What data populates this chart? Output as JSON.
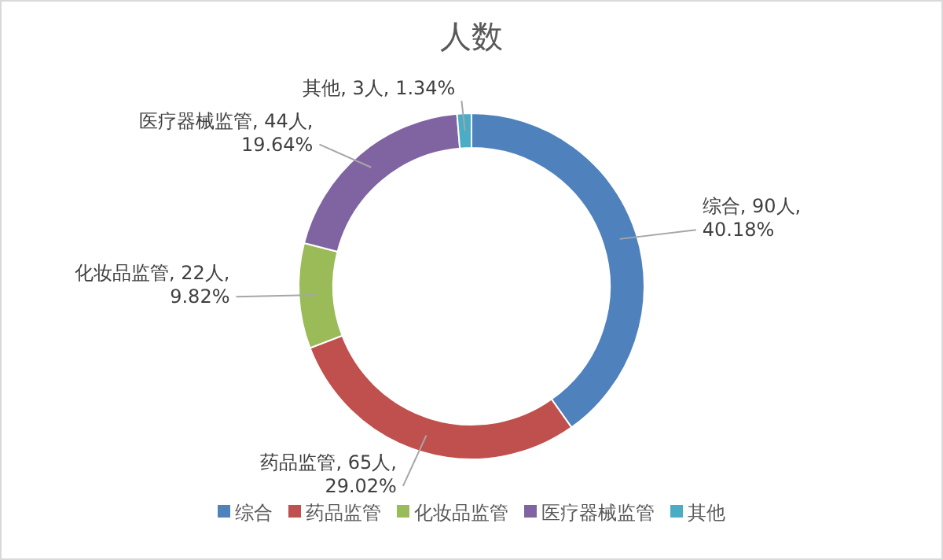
{
  "chart_data": {
    "type": "donut",
    "title": "人数",
    "categories": [
      "综合",
      "药品监管",
      "化妆品监管",
      "医疗器械监管",
      "其他"
    ],
    "values": [
      90,
      65,
      22,
      44,
      3
    ],
    "colors": [
      "#4f81bd",
      "#c0504d",
      "#9bbb59",
      "#8064a2",
      "#4bacc6"
    ],
    "value_labels": [
      "综合, 90人, 40.18%",
      "药品监管, 65人, 29.02%",
      "化妆品监管, 22人, 9.82%",
      "医疗器械监管, 44人, 19.64%",
      "其他, 3人, 1.34%"
    ],
    "legend": "bottom"
  }
}
